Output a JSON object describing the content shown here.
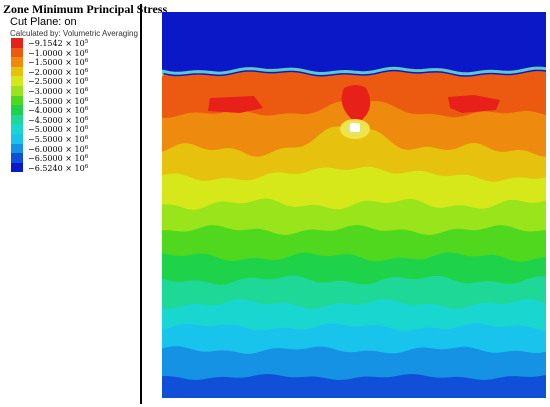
{
  "title": "Zone Minimum Principal Stress",
  "cut_plane": "Cut Plane: on",
  "calc_method": "Calculated by: Volumetric Averaging",
  "legend": [
    {
      "mant": "−9.1542",
      "exp": "5",
      "color": "#e8201a"
    },
    {
      "mant": "−1.0000",
      "exp": "6",
      "color": "#ec5a12"
    },
    {
      "mant": "−1.5000",
      "exp": "6",
      "color": "#ee8a0e"
    },
    {
      "mant": "−2.0000",
      "exp": "6",
      "color": "#e6c20e"
    },
    {
      "mant": "−2.5000",
      "exp": "6",
      "color": "#d6e81a"
    },
    {
      "mant": "−3.0000",
      "exp": "6",
      "color": "#9ae41c"
    },
    {
      "mant": "−3.5000",
      "exp": "6",
      "color": "#4fd81e"
    },
    {
      "mant": "−4.0000",
      "exp": "6",
      "color": "#1ed24a"
    },
    {
      "mant": "−4.5000",
      "exp": "6",
      "color": "#1ed898"
    },
    {
      "mant": "−5.0000",
      "exp": "6",
      "color": "#1ad6d0"
    },
    {
      "mant": "−5.5000",
      "exp": "6",
      "color": "#18c4ec"
    },
    {
      "mant": "−6.0000",
      "exp": "6",
      "color": "#1692e4"
    },
    {
      "mant": "−6.5000",
      "exp": "6",
      "color": "#1050d8"
    },
    {
      "mant": "−6.5240",
      "exp": "6",
      "color": "#0a18c8"
    }
  ],
  "times_sign": "×",
  "base": "10",
  "plot_colors": {
    "deep_blue": "#0a18c8",
    "band_colors": [
      "#ec5a12",
      "#ee8a0e",
      "#e6c20e",
      "#d6e81a",
      "#9ae41c",
      "#4fd81e",
      "#1ed24a",
      "#1ed898",
      "#1ad6d0",
      "#18c4ec",
      "#1692e4",
      "#1050d8"
    ],
    "hot_red": "#e8201a",
    "void_white": "#ffffff"
  }
}
